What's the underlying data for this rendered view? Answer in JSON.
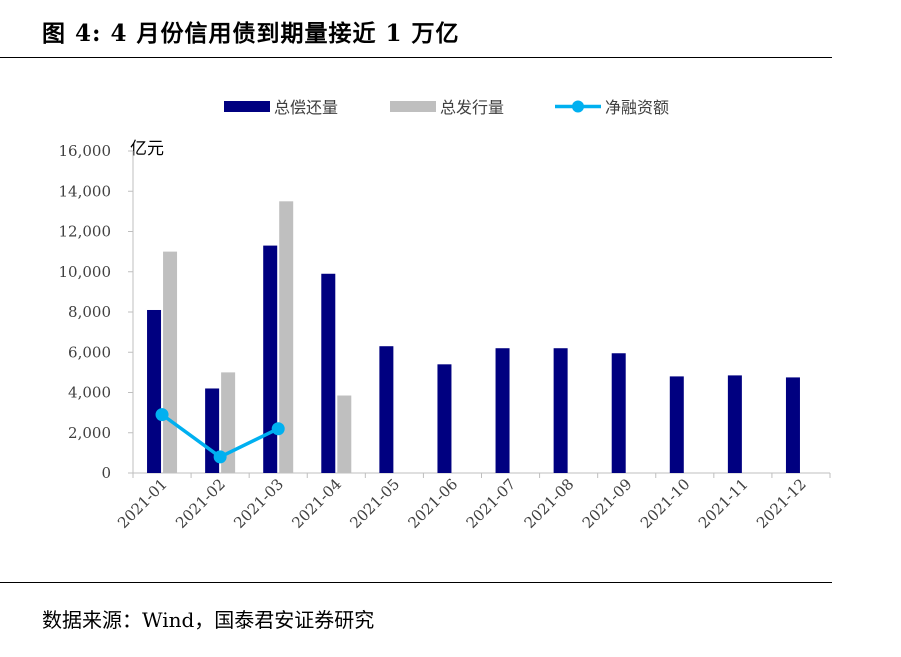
{
  "figure": {
    "title": "图 4:  4 月份信用债到期量接近 1 万亿",
    "source": "数据来源：Wind，国泰君安证券研究"
  },
  "chart_data": {
    "type": "bar",
    "unit_label": "亿元",
    "categories": [
      "2021-01",
      "2021-02",
      "2021-03",
      "2021-04",
      "2021-05",
      "2021-06",
      "2021-07",
      "2021-08",
      "2021-09",
      "2021-10",
      "2021-11",
      "2021-12"
    ],
    "series": [
      {
        "name": "总偿还量",
        "type": "bar",
        "color": "#000080",
        "values": [
          8100,
          4200,
          11300,
          9900,
          6300,
          5400,
          6200,
          6200,
          5950,
          4800,
          4850,
          4750
        ]
      },
      {
        "name": "总发行量",
        "type": "bar",
        "color": "#bfbfbf",
        "values": [
          11000,
          5000,
          13500,
          3850,
          null,
          null,
          null,
          null,
          null,
          null,
          null,
          null
        ]
      },
      {
        "name": "净融资额",
        "type": "line",
        "color": "#00b0f0",
        "values": [
          2900,
          800,
          2200,
          null,
          null,
          null,
          null,
          null,
          null,
          null,
          null,
          null
        ]
      }
    ],
    "ylim": [
      0,
      16000
    ],
    "yticks": [
      0,
      2000,
      4000,
      6000,
      8000,
      10000,
      12000,
      14000,
      16000
    ],
    "ytick_labels": [
      "0",
      "2,000",
      "4,000",
      "6,000",
      "8,000",
      "10,000",
      "12,000",
      "14,000",
      "16,000"
    ],
    "legend_position": "top",
    "grid": false
  }
}
